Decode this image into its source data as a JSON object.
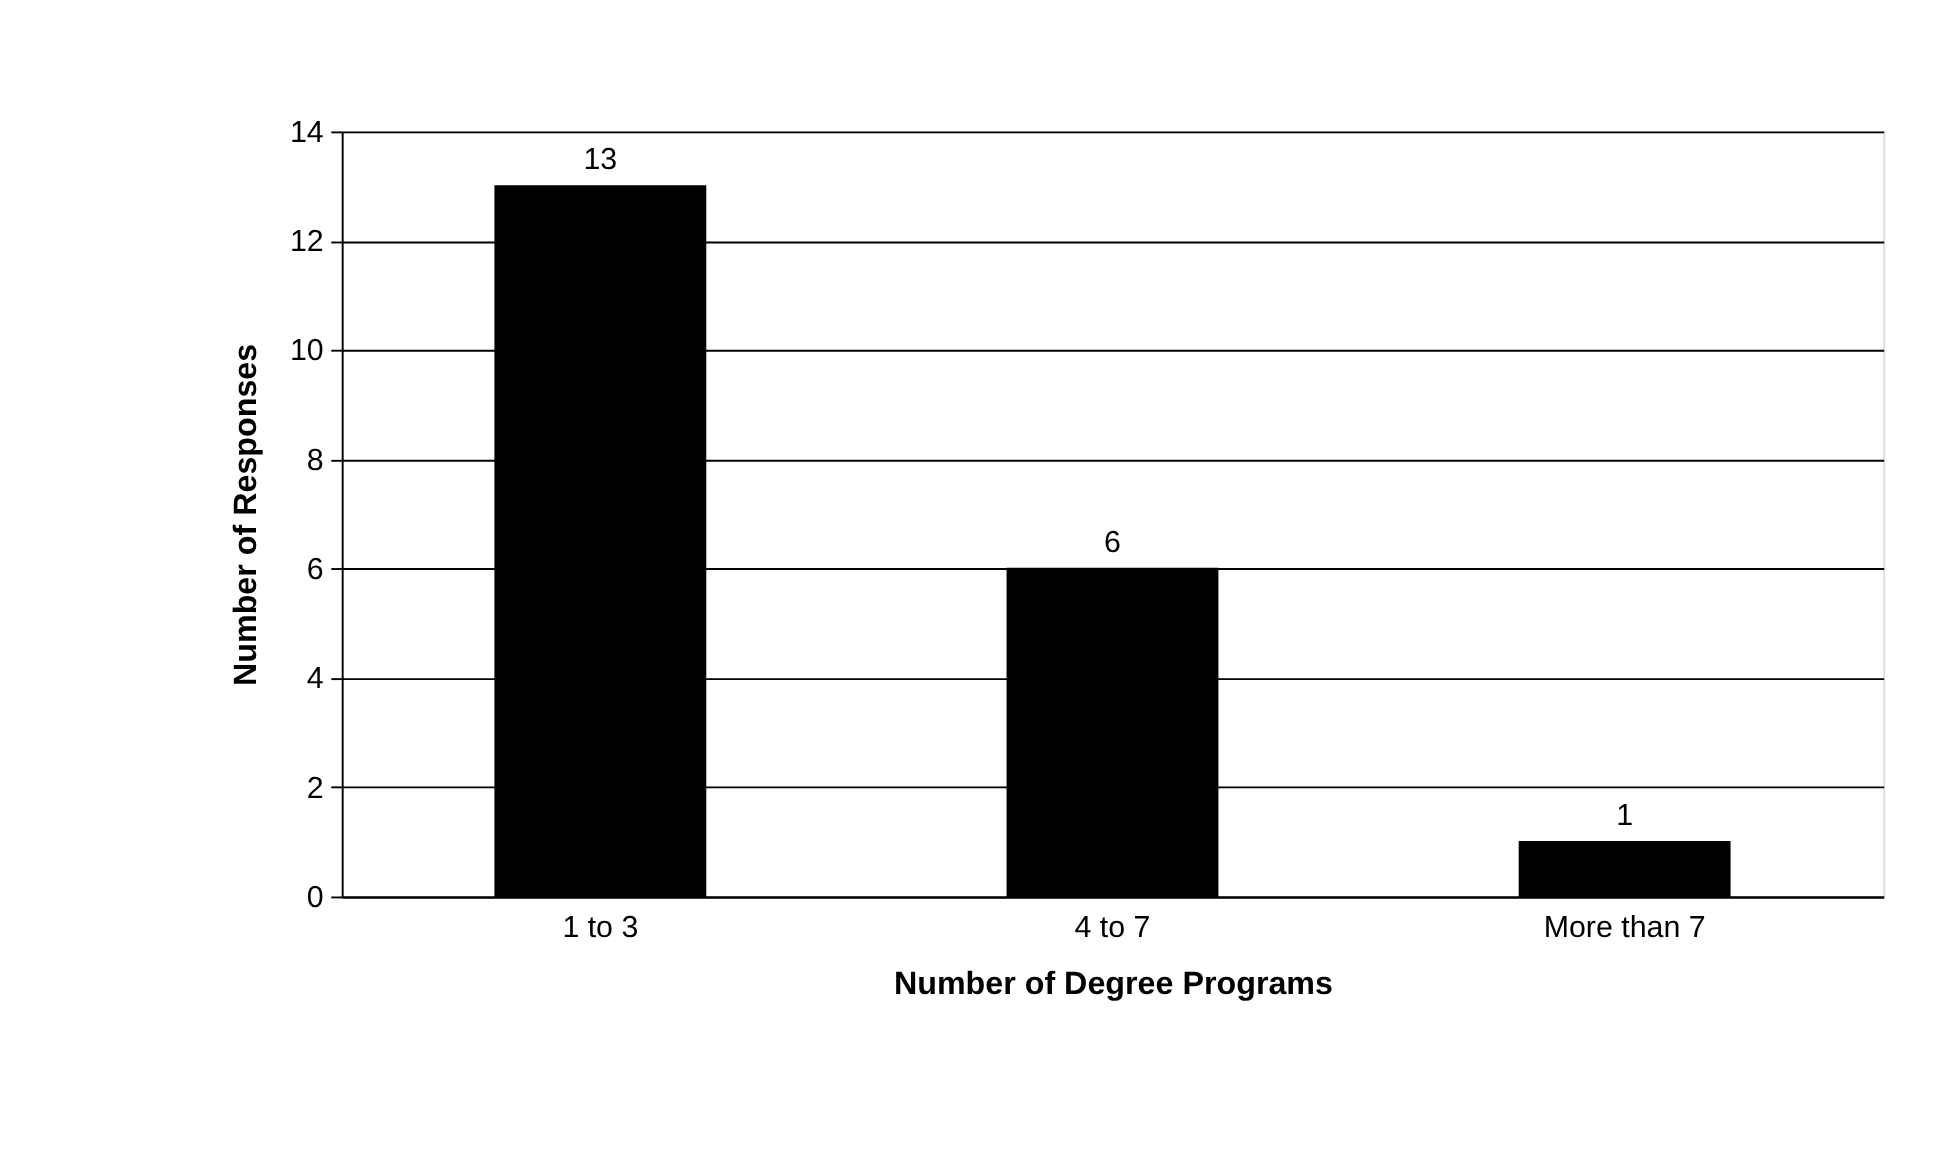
{
  "chart_data": {
    "type": "bar",
    "xlabel": "Number of Degree Programs",
    "ylabel": "Number of Responses",
    "categories": [
      "1 to 3",
      "4 to 7",
      "More than 7"
    ],
    "values": [
      13,
      6,
      1
    ],
    "color": "#000000",
    "ylim": [
      0,
      14
    ],
    "yticks": [
      0,
      2,
      4,
      6,
      8,
      10,
      12,
      14
    ],
    "grid": "y",
    "data_labels": true
  }
}
